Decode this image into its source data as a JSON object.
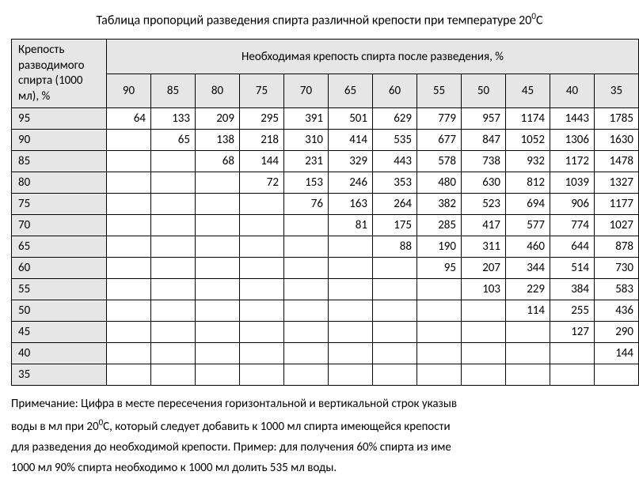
{
  "type": "table",
  "title_pre": "Таблица пропорций разведения спирта различной крепости при температуре 20",
  "title_sup": "0",
  "title_post": "С",
  "header_rowhead_l1": "Крепость",
  "header_rowhead_l2": "разводимого",
  "header_rowhead_l3": "спирта (1000",
  "header_rowhead_l4": "мл), %",
  "header_main": "Необходимая крепость спирта после разведения, %",
  "columns": [
    "90",
    "85",
    "80",
    "75",
    "70",
    "65",
    "60",
    "55",
    "50",
    "45",
    "40",
    "35"
  ],
  "rows": [
    {
      "label": "95",
      "cells": [
        "64",
        "133",
        "209",
        "295",
        "391",
        "501",
        "629",
        "779",
        "957",
        "1174",
        "1443",
        "1785"
      ]
    },
    {
      "label": "90",
      "cells": [
        "",
        "65",
        "138",
        "218",
        "310",
        "414",
        "535",
        "677",
        "847",
        "1052",
        "1306",
        "1630"
      ]
    },
    {
      "label": "85",
      "cells": [
        "",
        "",
        "68",
        "144",
        "231",
        "329",
        "443",
        "578",
        "738",
        "932",
        "1172",
        "1478"
      ]
    },
    {
      "label": "80",
      "cells": [
        "",
        "",
        "",
        "72",
        "153",
        "246",
        "353",
        "480",
        "630",
        "812",
        "1039",
        "1327"
      ]
    },
    {
      "label": "75",
      "cells": [
        "",
        "",
        "",
        "",
        "76",
        "163",
        "264",
        "382",
        "523",
        "694",
        "906",
        "1177"
      ]
    },
    {
      "label": "70",
      "cells": [
        "",
        "",
        "",
        "",
        "",
        "81",
        "175",
        "285",
        "417",
        "577",
        "774",
        "1027"
      ]
    },
    {
      "label": "65",
      "cells": [
        "",
        "",
        "",
        "",
        "",
        "",
        "88",
        "190",
        "311",
        "460",
        "644",
        "878"
      ]
    },
    {
      "label": "60",
      "cells": [
        "",
        "",
        "",
        "",
        "",
        "",
        "",
        "95",
        "207",
        "344",
        "514",
        "730"
      ]
    },
    {
      "label": "55",
      "cells": [
        "",
        "",
        "",
        "",
        "",
        "",
        "",
        "",
        "103",
        "229",
        "384",
        "583"
      ]
    },
    {
      "label": "50",
      "cells": [
        "",
        "",
        "",
        "",
        "",
        "",
        "",
        "",
        "",
        "114",
        "255",
        "436"
      ]
    },
    {
      "label": "45",
      "cells": [
        "",
        "",
        "",
        "",
        "",
        "",
        "",
        "",
        "",
        "",
        "127",
        "290"
      ]
    },
    {
      "label": "40",
      "cells": [
        "",
        "",
        "",
        "",
        "",
        "",
        "",
        "",
        "",
        "",
        "",
        "144"
      ]
    },
    {
      "label": "35",
      "cells": [
        "",
        "",
        "",
        "",
        "",
        "",
        "",
        "",
        "",
        "",
        "",
        ""
      ]
    }
  ],
  "note_line1_pre": "Примечание: Цифра в месте пересечения горизонтальной и вертикальной строк указыв",
  "note_line2_pre": "воды в мл при 20",
  "note_line2_sup": "0",
  "note_line2_post": "С, который следует добавить к 1000 мл спирта имеющейся крепости ",
  "note_line3": "для разведения до необходимой крепости. Пример: для получения 60% спирта из име",
  "note_line4": "1000 мл 90% спирта необходимо к 1000 мл долить 535 мл воды.",
  "colors": {
    "header_bg": "#e6e6e6",
    "body_bg": "#ffffff",
    "border": "#000000",
    "text": "#000000"
  },
  "font_family": "Calibri",
  "title_fontsize": 16,
  "cell_fontsize": 15
}
